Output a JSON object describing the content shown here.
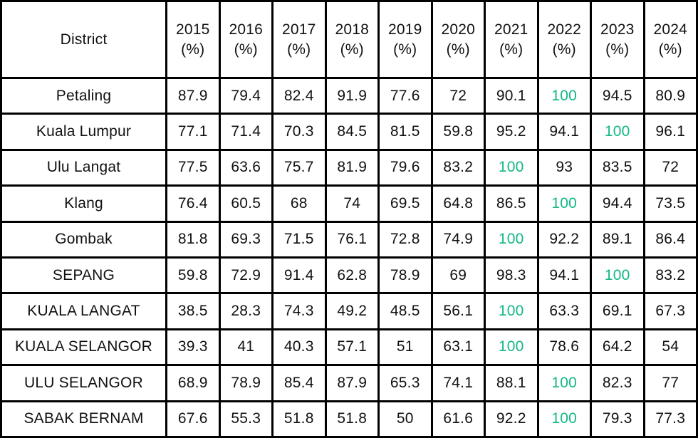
{
  "chart_data": {
    "type": "table",
    "title": "",
    "district_header": "District",
    "unit_label": "(%)",
    "years": [
      "2015",
      "2016",
      "2017",
      "2018",
      "2019",
      "2020",
      "2021",
      "2022",
      "2023",
      "2024"
    ],
    "highlight_value": "100",
    "highlight_meaning": "cells with value 100 are rendered in teal",
    "rows": [
      {
        "district": "Petaling",
        "values": [
          "87.9",
          "79.4",
          "82.4",
          "91.9",
          "77.6",
          "72",
          "90.1",
          "100",
          "94.5",
          "80.9"
        ]
      },
      {
        "district": "Kuala Lumpur",
        "values": [
          "77.1",
          "71.4",
          "70.3",
          "84.5",
          "81.5",
          "59.8",
          "95.2",
          "94.1",
          "100",
          "96.1"
        ]
      },
      {
        "district": "Ulu Langat",
        "values": [
          "77.5",
          "63.6",
          "75.7",
          "81.9",
          "79.6",
          "83.2",
          "100",
          "93",
          "83.5",
          "72"
        ]
      },
      {
        "district": "Klang",
        "values": [
          "76.4",
          "60.5",
          "68",
          "74",
          "69.5",
          "64.8",
          "86.5",
          "100",
          "94.4",
          "73.5"
        ]
      },
      {
        "district": "Gombak",
        "values": [
          "81.8",
          "69.3",
          "71.5",
          "76.1",
          "72.8",
          "74.9",
          "100",
          "92.2",
          "89.1",
          "86.4"
        ]
      },
      {
        "district": "SEPANG",
        "values": [
          "59.8",
          "72.9",
          "91.4",
          "62.8",
          "78.9",
          "69",
          "98.3",
          "94.1",
          "100",
          "83.2"
        ]
      },
      {
        "district": "KUALA LANGAT",
        "values": [
          "38.5",
          "28.3",
          "74.3",
          "49.2",
          "48.5",
          "56.1",
          "100",
          "63.3",
          "69.1",
          "67.3"
        ]
      },
      {
        "district": "KUALA SELANGOR",
        "values": [
          "39.3",
          "41",
          "40.3",
          "57.1",
          "51",
          "63.1",
          "100",
          "78.6",
          "64.2",
          "54"
        ]
      },
      {
        "district": "ULU SELANGOR",
        "values": [
          "68.9",
          "78.9",
          "85.4",
          "87.9",
          "65.3",
          "74.1",
          "88.1",
          "100",
          "82.3",
          "77"
        ]
      },
      {
        "district": "SABAK BERNAM",
        "values": [
          "67.6",
          "55.3",
          "51.8",
          "51.8",
          "50",
          "61.6",
          "92.2",
          "100",
          "79.3",
          "77.3"
        ]
      }
    ]
  },
  "colors": {
    "highlight": "#12b886",
    "text": "#111111",
    "border": "#000000",
    "background": "#ffffff"
  }
}
